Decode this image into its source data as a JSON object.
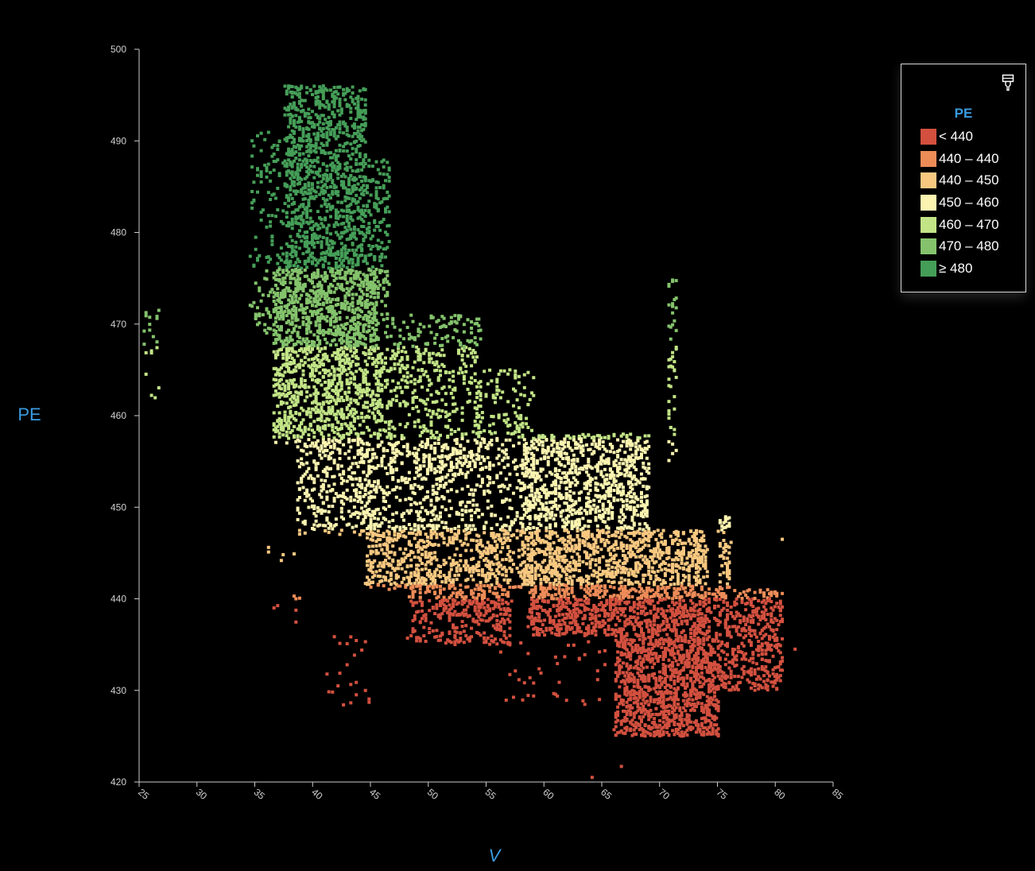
{
  "chart_data": {
    "type": "scatter",
    "xlabel": "V",
    "ylabel": "PE",
    "xlim": [
      25,
      85
    ],
    "ylim": [
      420,
      500
    ],
    "x_ticks": [
      25,
      30,
      35,
      40,
      45,
      50,
      55,
      60,
      65,
      70,
      75,
      80,
      85
    ],
    "y_ticks": [
      420,
      430,
      440,
      450,
      460,
      470,
      480,
      490,
      500
    ],
    "grid": false,
    "legend": {
      "title": "PE",
      "placement": "top-right",
      "bins": [
        {
          "label": "< 440",
          "min": 0,
          "max": 440,
          "color": "#d3503f"
        },
        {
          "label": "440 – 440",
          "min": 440,
          "max": 441.5,
          "color": "#ee8c58"
        },
        {
          "label": "440 – 450",
          "min": 441.5,
          "max": 447.5,
          "color": "#f8c880"
        },
        {
          "label": "450 – 460",
          "min": 447.5,
          "max": 457.5,
          "color": "#fbf4b0"
        },
        {
          "label": "460 – 470",
          "min": 457.5,
          "max": 467.5,
          "color": "#c2e486"
        },
        {
          "label": "470 – 480",
          "min": 467.5,
          "max": 476,
          "color": "#84c36c"
        },
        {
          "label": "≥ 480",
          "min": 476,
          "max": 1000,
          "color": "#459e58"
        }
      ]
    },
    "clusters": [
      {
        "x": [
          34.5,
          37.5
        ],
        "y": [
          469,
          491
        ],
        "n": 140
      },
      {
        "x": [
          37.5,
          44.5
        ],
        "y": [
          476,
          496
        ],
        "n": 1100
      },
      {
        "x": [
          44.5,
          46.5
        ],
        "y": [
          470,
          488
        ],
        "n": 160
      },
      {
        "x": [
          36.5,
          45.5
        ],
        "y": [
          467,
          476
        ],
        "n": 800
      },
      {
        "x": [
          36.5,
          46
        ],
        "y": [
          457,
          467
        ],
        "n": 750
      },
      {
        "x": [
          38.5,
          45
        ],
        "y": [
          447,
          457
        ],
        "n": 300
      },
      {
        "x": [
          46,
          54.5
        ],
        "y": [
          454,
          471
        ],
        "n": 520
      },
      {
        "x": [
          44,
          54
        ],
        "y": [
          447,
          457
        ],
        "n": 420
      },
      {
        "x": [
          54,
          59
        ],
        "y": [
          441,
          465
        ],
        "n": 380
      },
      {
        "x": [
          44.5,
          50.5
        ],
        "y": [
          441,
          448
        ],
        "n": 320
      },
      {
        "x": [
          50.5,
          57
        ],
        "y": [
          438,
          448
        ],
        "n": 300
      },
      {
        "x": [
          48,
          57
        ],
        "y": [
          435,
          441.5
        ],
        "n": 280
      },
      {
        "x": [
          58,
          69
        ],
        "y": [
          447.5,
          458
        ],
        "n": 900
      },
      {
        "x": [
          58,
          74
        ],
        "y": [
          441.5,
          447.5
        ],
        "n": 900
      },
      {
        "x": [
          58.5,
          75
        ],
        "y": [
          436,
          441.5
        ],
        "n": 900
      },
      {
        "x": [
          66,
          75
        ],
        "y": [
          425,
          436
        ],
        "n": 1100
      },
      {
        "x": [
          75,
          80.5
        ],
        "y": [
          430,
          441
        ],
        "n": 420
      },
      {
        "x": [
          75,
          76
        ],
        "y": [
          441,
          449
        ],
        "n": 60
      },
      {
        "x": [
          70.6,
          71.4
        ],
        "y": [
          455,
          475
        ],
        "n": 50
      },
      {
        "x": [
          25.3,
          26.7
        ],
        "y": [
          461,
          471.5
        ],
        "n": 20
      },
      {
        "x": [
          56,
          66
        ],
        "y": [
          428,
          436
        ],
        "n": 40
      },
      {
        "x": [
          41,
          45
        ],
        "y": [
          428,
          436
        ],
        "n": 20
      },
      {
        "x": [
          36,
          40
        ],
        "y": [
          436,
          446
        ],
        "n": 10
      }
    ],
    "outliers": [
      [
        64,
        420.5
      ],
      [
        66.5,
        421.7
      ],
      [
        36.5,
        439
      ],
      [
        38.5,
        440
      ],
      [
        42,
        430.5
      ],
      [
        44.5,
        430
      ],
      [
        81.5,
        434.5
      ],
      [
        80.5,
        446.5
      ]
    ]
  }
}
